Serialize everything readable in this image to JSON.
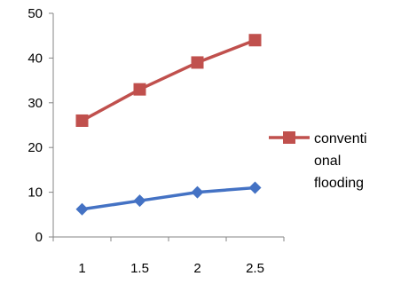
{
  "chart_data": {
    "type": "line",
    "title": "",
    "xlabel": "",
    "ylabel": "",
    "categories": [
      "1",
      "1.5",
      "2",
      "2.5"
    ],
    "ylim": [
      0,
      50
    ],
    "yticks": [
      "0",
      "10",
      "20",
      "30",
      "40",
      "50"
    ],
    "grid": false,
    "legend_position": "right",
    "series": [
      {
        "name": "",
        "values": [
          6.2,
          8.1,
          10.0,
          11.0
        ],
        "color": "#4472C4",
        "marker": "diamond"
      },
      {
        "name": "conventi onal flooding",
        "legend_lines": [
          "conventi",
          "onal",
          "flooding"
        ],
        "values": [
          26.0,
          33.0,
          39.0,
          44.0
        ],
        "color": "#C0504D",
        "marker": "square"
      }
    ]
  }
}
